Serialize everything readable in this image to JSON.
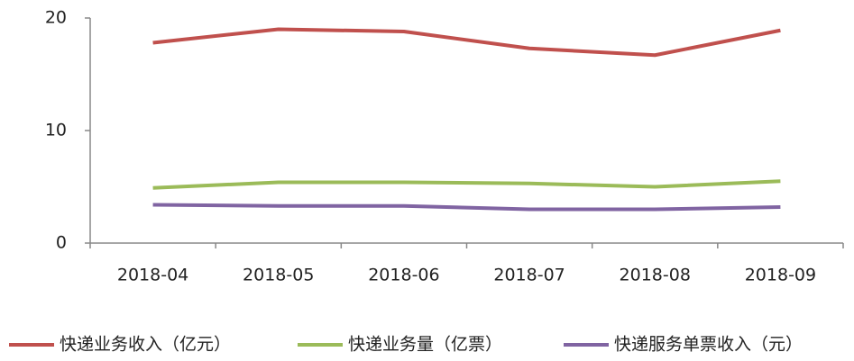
{
  "chart_data": {
    "type": "line",
    "categories": [
      "2018-04",
      "2018-05",
      "2018-06",
      "2018-07",
      "2018-08",
      "2018-09"
    ],
    "series": [
      {
        "name": "快递业务收入（亿元）",
        "color": "#c0504d",
        "values": [
          17.8,
          19.0,
          18.8,
          17.3,
          16.7,
          18.9
        ]
      },
      {
        "name": "快递业务量（亿票）",
        "color": "#9bbb59",
        "values": [
          4.9,
          5.4,
          5.4,
          5.3,
          5.0,
          5.5
        ]
      },
      {
        "name": "快递服务单票收入（元）",
        "color": "#8064a2",
        "values": [
          3.4,
          3.3,
          3.3,
          3.0,
          3.0,
          3.2
        ]
      }
    ],
    "ylim": [
      0,
      20
    ],
    "yticks": [
      0,
      10,
      20
    ],
    "grid": false,
    "legend": "bottom"
  }
}
